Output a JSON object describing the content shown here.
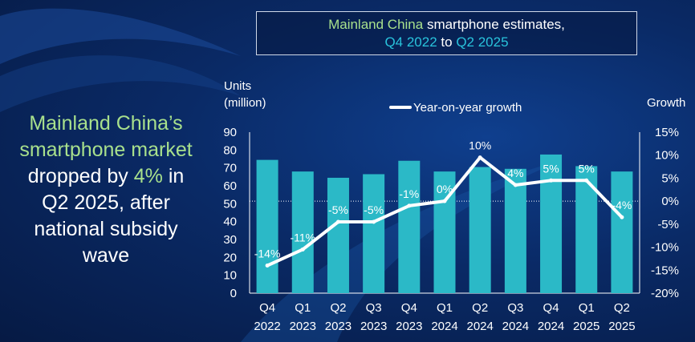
{
  "headline": {
    "line1": "Mainland China’s",
    "line2": "smartphone market",
    "line3_pre": "dropped by ",
    "line3_pct": "4%",
    "line3_post": " in",
    "line4": "Q2 2025, after",
    "line5": "national subsidy",
    "line6": "wave"
  },
  "title": {
    "part1": "Mainland China",
    "part2": " smartphone estimates,",
    "part3": "Q4 2022",
    "part4": " to ",
    "part5": "Q2 2025"
  },
  "colors": {
    "bar": "#2bb9c7",
    "line": "#ffffff",
    "highlight": "#a8e08c",
    "accent": "#29c3dc"
  },
  "chart_data": {
    "type": "bar",
    "categories": [
      [
        "Q4",
        "2022"
      ],
      [
        "Q1",
        "2023"
      ],
      [
        "Q2",
        "2023"
      ],
      [
        "Q3",
        "2023"
      ],
      [
        "Q4",
        "2023"
      ],
      [
        "Q1",
        "2024"
      ],
      [
        "Q2",
        "2024"
      ],
      [
        "Q3",
        "2024"
      ],
      [
        "Q4",
        "2024"
      ],
      [
        "Q1",
        "2025"
      ],
      [
        "Q2",
        "2025"
      ]
    ],
    "series": [
      {
        "type": "bar",
        "axis": "left",
        "values": [
          74.5,
          68,
          64.5,
          66.5,
          74,
          68,
          70.5,
          69.5,
          77.5,
          71,
          68
        ]
      },
      {
        "name": "Year-on-year growth",
        "type": "line",
        "axis": "right",
        "values": [
          -14,
          -10.5,
          -4.5,
          -4.5,
          -1,
          0,
          9.5,
          3.5,
          4.5,
          4.5,
          -3.5
        ],
        "labels": [
          "-14%",
          "-11%",
          "-5%",
          "-5%",
          "-1%",
          "0%",
          "10%",
          "4%",
          "5%",
          "5%",
          "-4%"
        ]
      }
    ],
    "ylabel_left": [
      "Units",
      "(million)"
    ],
    "ylabel_right": "Growth",
    "ylim_left": [
      0,
      90
    ],
    "yticks_left": [
      "0",
      "10",
      "20",
      "30",
      "40",
      "50",
      "60",
      "70",
      "80",
      "90"
    ],
    "ylim_right": [
      -20,
      15
    ],
    "yticks_right": [
      "-20%",
      "-15%",
      "-10%",
      "-5%",
      "0%",
      "5%",
      "10%",
      "15%"
    ],
    "legend": "top-center",
    "zero_line": "dotted"
  }
}
